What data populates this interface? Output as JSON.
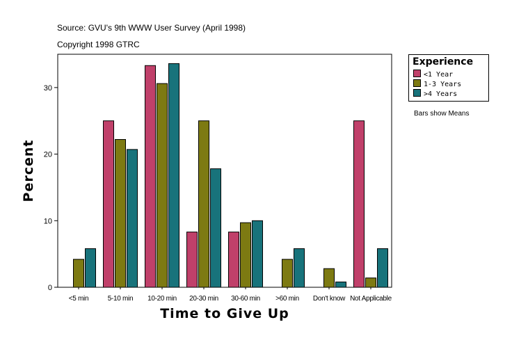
{
  "header": {
    "source": "Source: GVU's 9th WWW User Survey (April 1998)",
    "copyright": "Copyright 1998 GTRC"
  },
  "legend": {
    "title": "Experience",
    "items": [
      {
        "label": "<1 Year",
        "color": "#c0406a"
      },
      {
        "label": "1-3 Years",
        "color": "#7d7a12"
      },
      {
        "label": ">4 Years",
        "color": "#18737b"
      }
    ]
  },
  "note": "Bars show Means",
  "chart_data": {
    "type": "bar",
    "xlabel": "Time to Give Up",
    "ylabel": "Percent",
    "ylim": [
      0,
      35
    ],
    "yticks": [
      0,
      10,
      20,
      30
    ],
    "categories": [
      "<5 min",
      "5-10 min",
      "10-20 min",
      "20-30 min",
      "30-60 min",
      ">60 min",
      "Don't know",
      "Not Applicable"
    ],
    "series": [
      {
        "name": "<1 Year",
        "color": "#c0406a",
        "values": [
          0,
          25.0,
          33.3,
          8.3,
          8.3,
          0,
          0,
          25.0
        ]
      },
      {
        "name": "1-3 Years",
        "color": "#7d7a12",
        "values": [
          4.2,
          22.2,
          30.6,
          25.0,
          9.7,
          4.2,
          2.8,
          1.4
        ]
      },
      {
        "name": ">4 Years",
        "color": "#18737b",
        "values": [
          5.8,
          20.7,
          33.6,
          17.8,
          10.0,
          5.8,
          0.8,
          5.8
        ]
      }
    ]
  }
}
